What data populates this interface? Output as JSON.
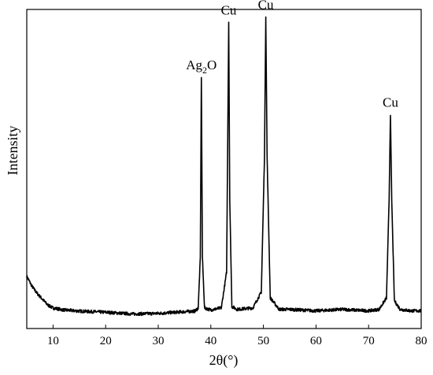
{
  "chart_data": {
    "type": "line",
    "title": "",
    "xlabel": "2θ(°)",
    "ylabel": "Intensity",
    "xlim": [
      5,
      80
    ],
    "ylim": [
      0,
      100
    ],
    "xticks": [
      10,
      20,
      30,
      40,
      50,
      60,
      70,
      80
    ],
    "y_tick_labels_shown": false,
    "grid": false,
    "legend": "none",
    "line_color": "#000000",
    "baseline_level": 1.5,
    "series": [
      {
        "x": [
          5,
          6,
          7,
          8,
          9,
          10,
          12,
          15,
          20,
          25,
          30,
          35,
          37,
          37.6,
          38.0,
          38.2,
          38.4,
          38.8,
          40,
          42,
          43.0,
          43.4,
          43.6,
          44.0,
          45,
          48,
          49.6,
          50.2,
          50.45,
          50.7,
          51.3,
          53,
          55,
          60,
          65,
          70,
          72,
          73.4,
          73.9,
          74.15,
          74.4,
          74.9,
          76,
          78,
          80
        ],
        "y": [
          13.5,
          10,
          7.5,
          5.5,
          3.5,
          2.5,
          1.8,
          1.4,
          1.0,
          0.4,
          0.6,
          1.2,
          1.4,
          2.5,
          20,
          83,
          20,
          2.5,
          1.8,
          2.5,
          15,
          102,
          40,
          3,
          2.0,
          2.5,
          8,
          55,
          104,
          55,
          6,
          2.0,
          2.0,
          1.5,
          2.0,
          1.5,
          2.0,
          6,
          40,
          70,
          40,
          5,
          2.0,
          1.5,
          1.5
        ]
      }
    ],
    "annotations": [
      {
        "text": "Ag",
        "subscript": "2",
        "suffix": "O",
        "x": 38.2,
        "y": 83
      },
      {
        "text": "Cu",
        "x": 43.4,
        "y": 102
      },
      {
        "text": "Cu",
        "x": 50.45,
        "y": 104
      },
      {
        "text": "Cu",
        "x": 74.15,
        "y": 70
      }
    ]
  }
}
